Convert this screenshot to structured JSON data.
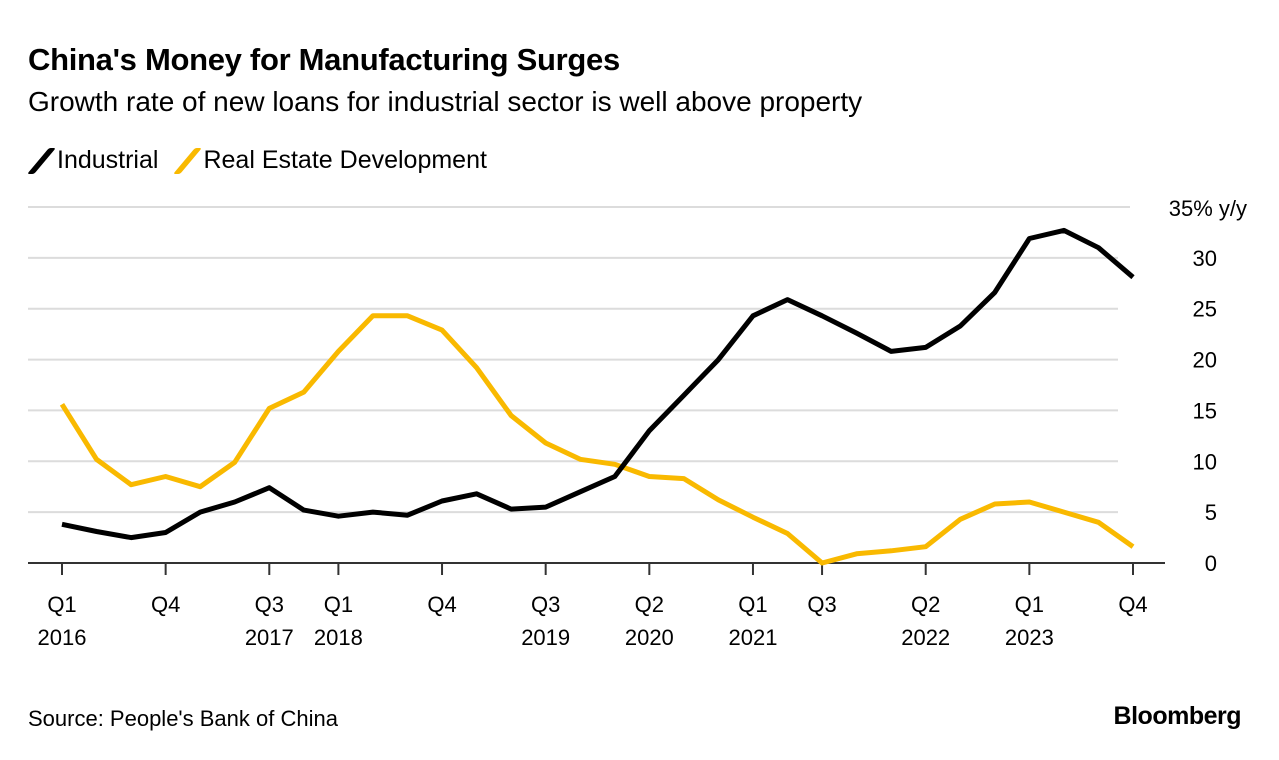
{
  "chart_data": {
    "type": "line",
    "title": "China's Money for Manufacturing Surges",
    "subtitle": "Growth rate of new loans for industrial sector is well above property",
    "ylabel_unit": "35% y/y",
    "ylim": [
      0,
      35
    ],
    "yticks": [
      0,
      5,
      10,
      15,
      20,
      25,
      30
    ],
    "grid": true,
    "legend_placement": "top-left",
    "x_count": 32,
    "xticks": [
      {
        "index": 0,
        "q": "Q1",
        "year": "2016"
      },
      {
        "index": 3,
        "q": "Q4",
        "year": ""
      },
      {
        "index": 6,
        "q": "Q3",
        "year": "2017"
      },
      {
        "index": 8,
        "q": "Q1",
        "year": "2018"
      },
      {
        "index": 11,
        "q": "Q4",
        "year": ""
      },
      {
        "index": 14,
        "q": "Q3",
        "year": "2019"
      },
      {
        "index": 17,
        "q": "Q2",
        "year": "2020"
      },
      {
        "index": 20,
        "q": "Q1",
        "year": "2021"
      },
      {
        "index": 22,
        "q": "Q3",
        "year": ""
      },
      {
        "index": 25,
        "q": "Q2",
        "year": "2022"
      },
      {
        "index": 28,
        "q": "Q1",
        "year": "2023"
      },
      {
        "index": 31,
        "q": "Q4",
        "year": ""
      }
    ],
    "series": [
      {
        "name": "Industrial",
        "color": "#000000",
        "values": [
          3.8,
          3.1,
          2.5,
          3.0,
          5.0,
          6.0,
          7.4,
          5.2,
          4.6,
          5.0,
          4.7,
          6.1,
          6.8,
          5.3,
          5.5,
          7.0,
          8.5,
          13.0,
          16.5,
          20.0,
          24.3,
          25.9,
          24.3,
          22.6,
          20.8,
          21.2,
          23.3,
          26.6,
          31.9,
          32.7,
          31.0,
          28.1
        ]
      },
      {
        "name": "Real Estate Development",
        "color": "#f9b900",
        "values": [
          15.6,
          10.2,
          7.7,
          8.5,
          7.5,
          9.9,
          15.2,
          16.8,
          20.8,
          24.3,
          24.3,
          22.9,
          19.2,
          14.5,
          11.8,
          10.2,
          9.7,
          8.5,
          8.3,
          6.2,
          4.5,
          2.9,
          0.0,
          0.9,
          1.2,
          1.6,
          4.3,
          5.8,
          6.0,
          5.0,
          4.0,
          1.6
        ]
      }
    ]
  },
  "footer": {
    "source": "Source: People's Bank of China",
    "brand": "Bloomberg"
  }
}
